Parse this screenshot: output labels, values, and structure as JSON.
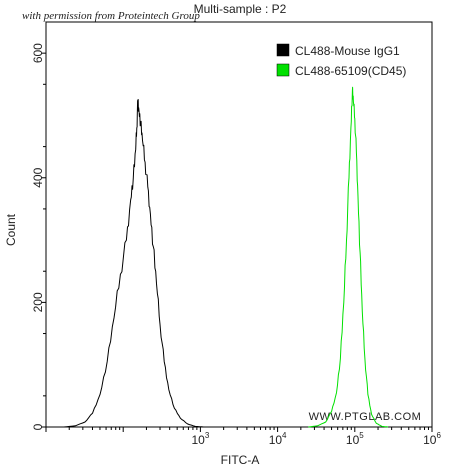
{
  "chart_data": {
    "type": "line",
    "title": "Multi-sample : P2",
    "watermark_top": "with permission from Proteintech Group",
    "watermark_plot": "WWW.PTGLAB.COM",
    "xlabel": "FITC-A",
    "ylabel": "Count",
    "x_scale": "log",
    "xlim": [
      10,
      1000000
    ],
    "ylim": [
      0,
      650
    ],
    "grid": false,
    "legend_position": "top-right",
    "y_ticks": [
      {
        "value": 0,
        "label": "0"
      },
      {
        "value": 200,
        "label": "200"
      },
      {
        "value": 400,
        "label": "400"
      },
      {
        "value": 600,
        "label": "600"
      }
    ],
    "x_ticks": [
      {
        "value": 1000,
        "base": "10",
        "exp": "3"
      },
      {
        "value": 10000,
        "base": "10",
        "exp": "4"
      },
      {
        "value": 100000,
        "base": "10",
        "exp": "5"
      },
      {
        "value": 1000000,
        "base": "10",
        "exp": "6"
      }
    ],
    "series": [
      {
        "name": "CL488-Mouse IgG1",
        "color": "#000000",
        "points": [
          [
            17,
            0
          ],
          [
            24,
            2
          ],
          [
            32,
            8
          ],
          [
            40,
            22
          ],
          [
            50,
            52
          ],
          [
            62,
            105
          ],
          [
            76,
            175
          ],
          [
            92,
            245
          ],
          [
            110,
            300
          ],
          [
            125,
            365
          ],
          [
            135,
            400
          ],
          [
            145,
            445
          ],
          [
            150,
            480
          ],
          [
            155,
            525
          ],
          [
            160,
            508
          ],
          [
            168,
            488
          ],
          [
            178,
            460
          ],
          [
            192,
            425
          ],
          [
            208,
            385
          ],
          [
            225,
            342
          ],
          [
            245,
            290
          ],
          [
            270,
            230
          ],
          [
            300,
            165
          ],
          [
            340,
            105
          ],
          [
            390,
            60
          ],
          [
            460,
            30
          ],
          [
            550,
            14
          ],
          [
            680,
            5
          ],
          [
            860,
            1
          ],
          [
            1100,
            0
          ]
        ]
      },
      {
        "name": "CL488-65109(CD45)",
        "color": "#00e000",
        "points": [
          [
            25000,
            0
          ],
          [
            33000,
            2
          ],
          [
            42000,
            8
          ],
          [
            50000,
            25
          ],
          [
            58000,
            55
          ],
          [
            65000,
            110
          ],
          [
            72000,
            200
          ],
          [
            78000,
            300
          ],
          [
            84000,
            400
          ],
          [
            89000,
            480
          ],
          [
            93000,
            540
          ],
          [
            96000,
            522
          ],
          [
            100000,
            495
          ],
          [
            105000,
            440
          ],
          [
            110000,
            370
          ],
          [
            117000,
            280
          ],
          [
            125000,
            185
          ],
          [
            135000,
            110
          ],
          [
            148000,
            52
          ],
          [
            165000,
            20
          ],
          [
            190000,
            6
          ],
          [
            225000,
            1
          ],
          [
            270000,
            0
          ]
        ]
      }
    ]
  }
}
